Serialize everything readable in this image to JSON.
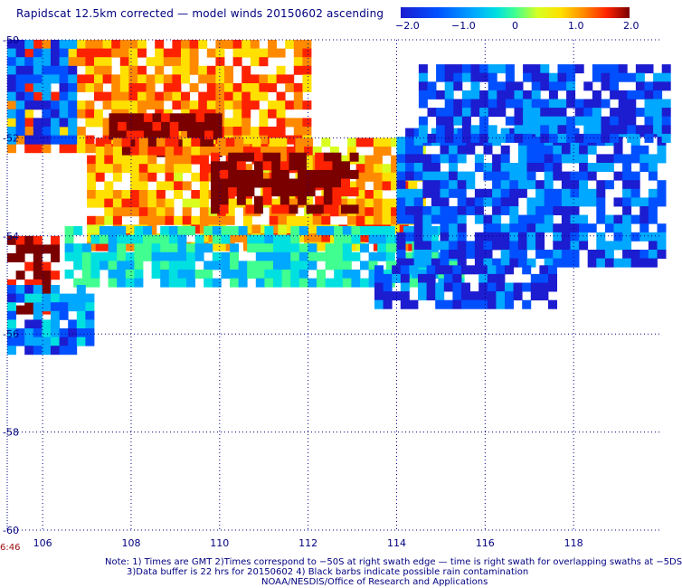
{
  "header": {
    "title": "Rapidscat 12.5km corrected — model winds 20150602 ascending"
  },
  "colorbar": {
    "labels": [
      "−2.0",
      "−1.0",
      "0",
      "1.0",
      "2.0"
    ],
    "min": -2.0,
    "max": 2.0
  },
  "axes": {
    "x_ticks": [
      "106",
      "108",
      "110",
      "112",
      "114",
      "116",
      "118"
    ],
    "y_ticks": [
      "-50",
      "-52",
      "-54",
      "-56",
      "-58",
      "-60"
    ]
  },
  "time_label": "6:46",
  "footer": {
    "line1": "Note: 1) Times are GMT 2)Times correspond to −50S at right swath edge — time is right swath for overlapping swaths at −5DS",
    "line2": "3)Data buffer is 22 hrs for 20150602 4) Black barbs indicate possible rain contamination",
    "line3": "NOAA/NESDIS/Office of Research and Applications"
  },
  "chart_data": {
    "type": "heatmap",
    "title": "Rapidscat 12.5km corrected — model winds 20150602 ascending",
    "x_range": [
      105.2,
      120.0
    ],
    "y_range": [
      -60,
      -50
    ],
    "x_ticks": [
      106,
      108,
      110,
      112,
      114,
      116,
      118
    ],
    "y_ticks": [
      -50,
      -52,
      -54,
      -56,
      -58,
      -60
    ],
    "grid": true,
    "value_range": [
      -2.0,
      2.0
    ],
    "colors": [
      "#1c1cd0",
      "#0050ff",
      "#00a8ff",
      "#00e0e0",
      "#40ff90",
      "#d8ff20",
      "#ffe000",
      "#ff8a00",
      "#ff2200",
      "#7a0000"
    ],
    "regions": [
      {
        "name": "northwest",
        "lon": [
          105.2,
          112.0
        ],
        "lat": [
          -52.3,
          -50.0
        ],
        "value": 1.0
      },
      {
        "name": "northwest-edge",
        "lon": [
          105.2,
          106.6
        ],
        "lat": [
          -52.0,
          -50.0
        ],
        "value": -1.4
      },
      {
        "name": "northwest-core",
        "lon": [
          107.5,
          110.0
        ],
        "lat": [
          -52.3,
          -51.5
        ],
        "value": 1.9
      },
      {
        "name": "central-band",
        "lon": [
          107.0,
          114.5
        ],
        "lat": [
          -54.2,
          -52.0
        ],
        "value": 0.9
      },
      {
        "name": "central-core",
        "lon": [
          109.8,
          113.0
        ],
        "lat": [
          -53.5,
          -52.3
        ],
        "value": 1.9
      },
      {
        "name": "central-south",
        "lon": [
          106.5,
          115.5
        ],
        "lat": [
          -55.0,
          -53.8
        ],
        "value": -0.6
      },
      {
        "name": "east-band",
        "lon": [
          114.0,
          120.0
        ],
        "lat": [
          -54.6,
          -51.8
        ],
        "value": -1.4
      },
      {
        "name": "east-scatter",
        "lon": [
          114.5,
          120.0
        ],
        "lat": [
          -52.0,
          -50.5
        ],
        "value": -1.5
      },
      {
        "name": "southeast-scatter",
        "lon": [
          113.5,
          117.5
        ],
        "lat": [
          -55.4,
          -54.6
        ],
        "value": -1.6
      },
      {
        "name": "west-edge",
        "lon": [
          105.2,
          106.2
        ],
        "lat": [
          -55.5,
          -54.0
        ],
        "value": 1.8
      },
      {
        "name": "west-south",
        "lon": [
          105.2,
          107.0
        ],
        "lat": [
          -56.3,
          -55.0
        ],
        "value": -1.2
      }
    ]
  }
}
